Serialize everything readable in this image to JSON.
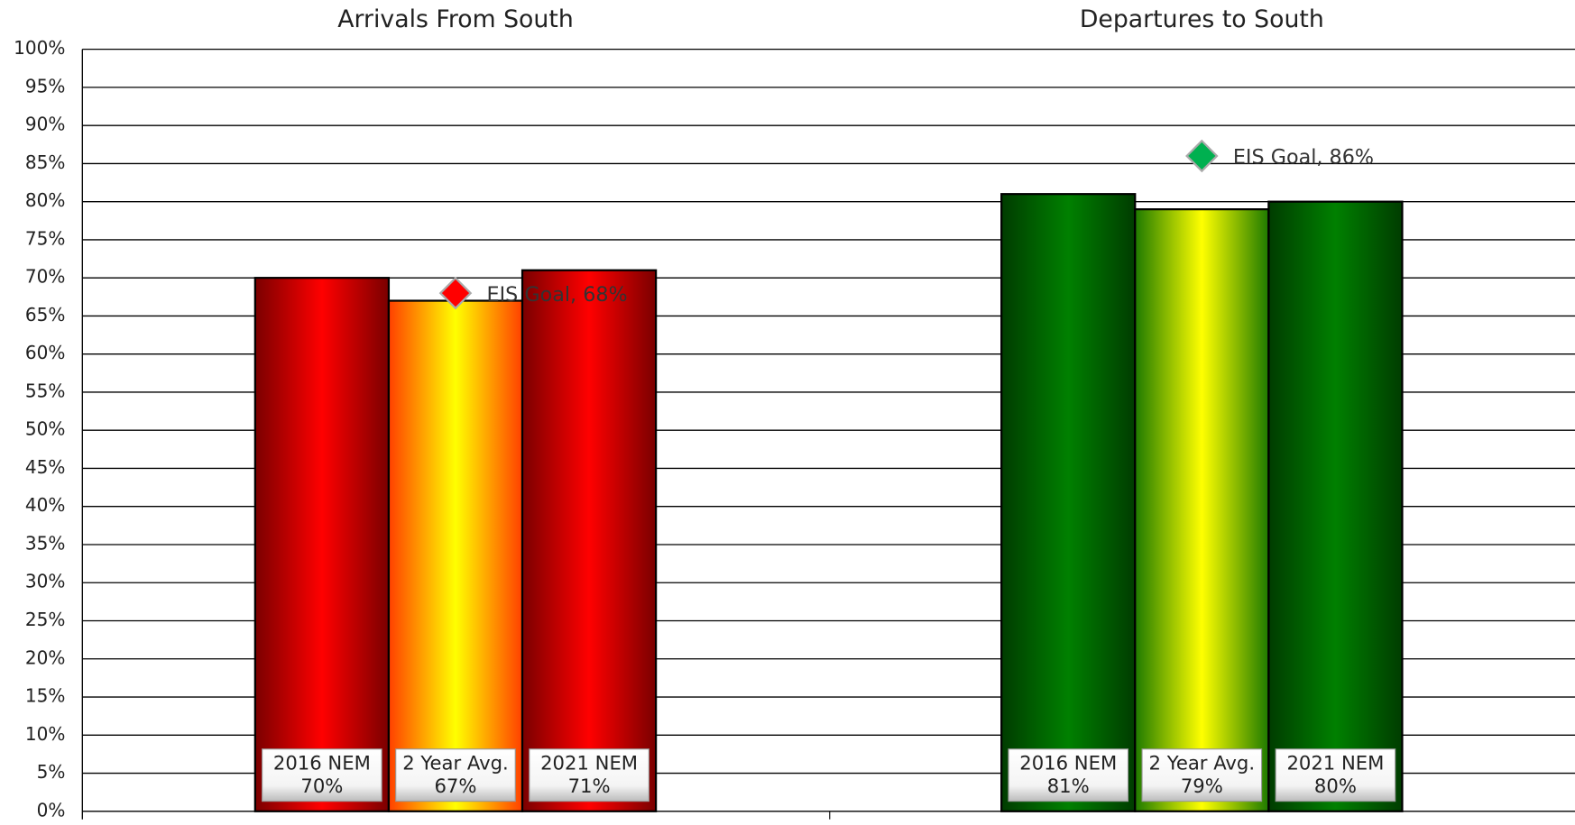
{
  "chart_data": {
    "type": "bar",
    "categories": [
      "Arrivals From South",
      "Departures to South"
    ],
    "series": [
      {
        "name": "2016 NEM",
        "colors": [
          "#ff0000",
          "#008000"
        ],
        "edge_colors": [
          "#7a0000",
          "#003c00"
        ],
        "values": [
          70,
          81
        ],
        "value_labels": [
          "70%",
          "81%"
        ]
      },
      {
        "name": "2 Year Avg.",
        "colors": [
          "#ffff00",
          "#ffff00"
        ],
        "edge_colors": [
          "#ff4000",
          "#1e7a00"
        ],
        "values": [
          67,
          79
        ],
        "value_labels": [
          "67%",
          "79%"
        ]
      },
      {
        "name": "2021 NEM",
        "colors": [
          "#ff0000",
          "#008000"
        ],
        "edge_colors": [
          "#7a0000",
          "#003c00"
        ],
        "values": [
          71,
          80
        ],
        "value_labels": [
          "71%",
          "80%"
        ]
      }
    ],
    "goals": {
      "colors": [
        "#ff0000",
        "#00b050"
      ],
      "values": [
        68,
        86
      ],
      "value_labels": [
        "EIS Goal, 68%",
        "EIS Goal, 86%"
      ]
    },
    "ylim": [
      0,
      100
    ],
    "yticks": [
      {
        "value": 0,
        "label": "0%"
      },
      {
        "value": 5,
        "label": "5%"
      },
      {
        "value": 10,
        "label": "10%"
      },
      {
        "value": 15,
        "label": "15%"
      },
      {
        "value": 20,
        "label": "20%"
      },
      {
        "value": 25,
        "label": "25%"
      },
      {
        "value": 30,
        "label": "30%"
      },
      {
        "value": 35,
        "label": "35%"
      },
      {
        "value": 40,
        "label": "40%"
      },
      {
        "value": 45,
        "label": "45%"
      },
      {
        "value": 50,
        "label": "50%"
      },
      {
        "value": 55,
        "label": "55%"
      },
      {
        "value": 60,
        "label": "60%"
      },
      {
        "value": 65,
        "label": "65%"
      },
      {
        "value": 70,
        "label": "70%"
      },
      {
        "value": 75,
        "label": "75%"
      },
      {
        "value": 80,
        "label": "80%"
      },
      {
        "value": 85,
        "label": "85%"
      },
      {
        "value": 90,
        "label": "90%"
      },
      {
        "value": 95,
        "label": "95%"
      },
      {
        "value": 100,
        "label": "100%"
      }
    ],
    "grid": true
  }
}
